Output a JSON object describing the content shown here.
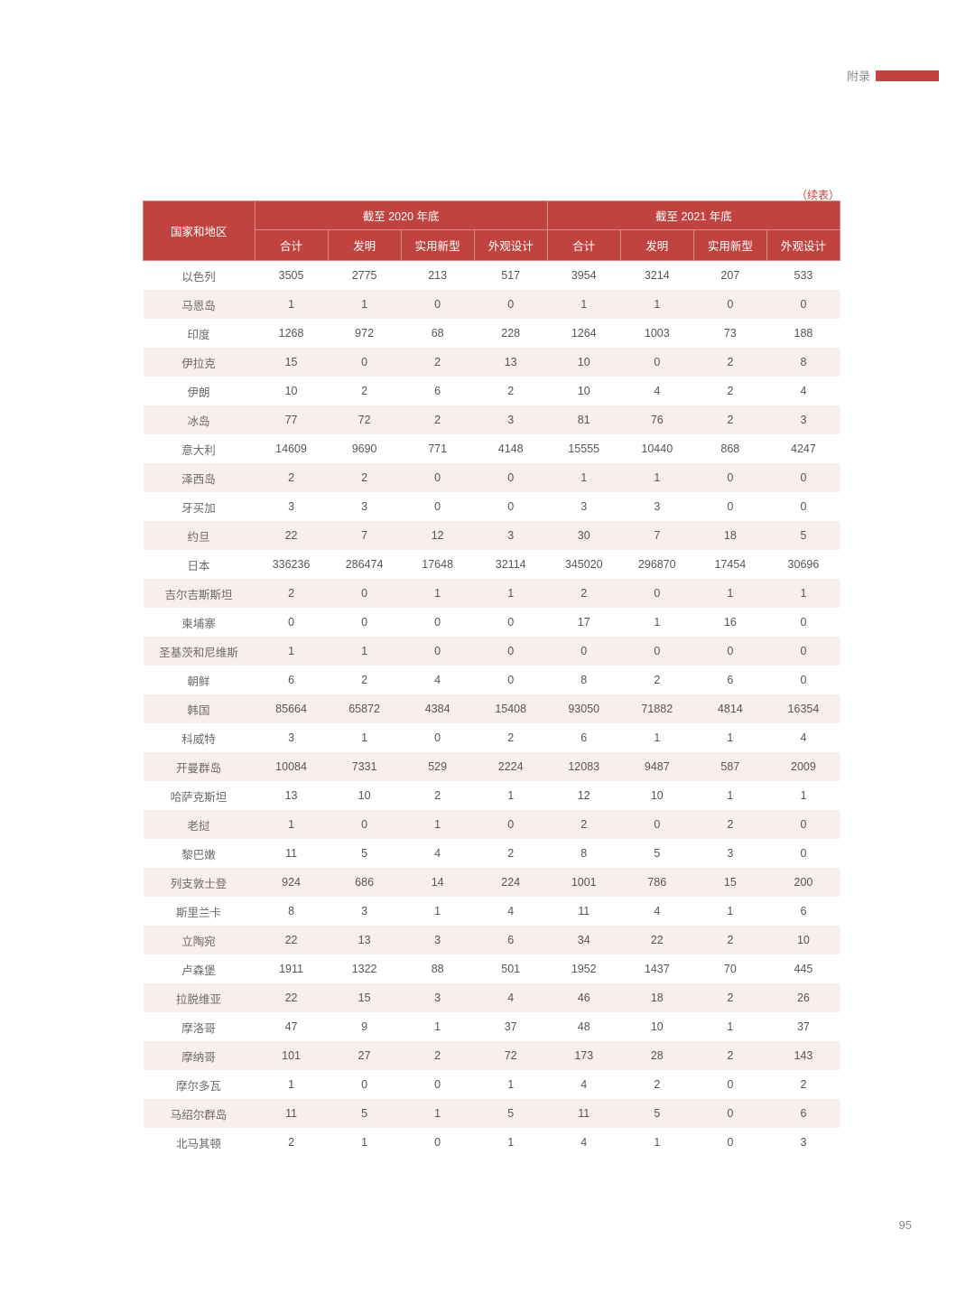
{
  "header": {
    "appendix_label": "附录",
    "continue_label": "（续表）",
    "page_number": "95"
  },
  "table": {
    "col_region": "国家和地区",
    "group_2020": "截至 2020 年底",
    "group_2021": "截至 2021 年底",
    "sub_total": "合计",
    "sub_invention": "发明",
    "sub_utility": "实用新型",
    "sub_design": "外观设计",
    "rows": [
      {
        "region": "以色列",
        "a": "3505",
        "b": "2775",
        "c": "213",
        "d": "517",
        "e": "3954",
        "f": "3214",
        "g": "207",
        "h": "533"
      },
      {
        "region": "马恩岛",
        "a": "1",
        "b": "1",
        "c": "0",
        "d": "0",
        "e": "1",
        "f": "1",
        "g": "0",
        "h": "0"
      },
      {
        "region": "印度",
        "a": "1268",
        "b": "972",
        "c": "68",
        "d": "228",
        "e": "1264",
        "f": "1003",
        "g": "73",
        "h": "188"
      },
      {
        "region": "伊拉克",
        "a": "15",
        "b": "0",
        "c": "2",
        "d": "13",
        "e": "10",
        "f": "0",
        "g": "2",
        "h": "8"
      },
      {
        "region": "伊朗",
        "a": "10",
        "b": "2",
        "c": "6",
        "d": "2",
        "e": "10",
        "f": "4",
        "g": "2",
        "h": "4"
      },
      {
        "region": "冰岛",
        "a": "77",
        "b": "72",
        "c": "2",
        "d": "3",
        "e": "81",
        "f": "76",
        "g": "2",
        "h": "3"
      },
      {
        "region": "意大利",
        "a": "14609",
        "b": "9690",
        "c": "771",
        "d": "4148",
        "e": "15555",
        "f": "10440",
        "g": "868",
        "h": "4247"
      },
      {
        "region": "泽西岛",
        "a": "2",
        "b": "2",
        "c": "0",
        "d": "0",
        "e": "1",
        "f": "1",
        "g": "0",
        "h": "0"
      },
      {
        "region": "牙买加",
        "a": "3",
        "b": "3",
        "c": "0",
        "d": "0",
        "e": "3",
        "f": "3",
        "g": "0",
        "h": "0"
      },
      {
        "region": "约旦",
        "a": "22",
        "b": "7",
        "c": "12",
        "d": "3",
        "e": "30",
        "f": "7",
        "g": "18",
        "h": "5"
      },
      {
        "region": "日本",
        "a": "336236",
        "b": "286474",
        "c": "17648",
        "d": "32114",
        "e": "345020",
        "f": "296870",
        "g": "17454",
        "h": "30696"
      },
      {
        "region": "吉尔吉斯斯坦",
        "a": "2",
        "b": "0",
        "c": "1",
        "d": "1",
        "e": "2",
        "f": "0",
        "g": "1",
        "h": "1"
      },
      {
        "region": "柬埔寨",
        "a": "0",
        "b": "0",
        "c": "0",
        "d": "0",
        "e": "17",
        "f": "1",
        "g": "16",
        "h": "0"
      },
      {
        "region": "圣基茨和尼维斯",
        "a": "1",
        "b": "1",
        "c": "0",
        "d": "0",
        "e": "0",
        "f": "0",
        "g": "0",
        "h": "0"
      },
      {
        "region": "朝鲜",
        "a": "6",
        "b": "2",
        "c": "4",
        "d": "0",
        "e": "8",
        "f": "2",
        "g": "6",
        "h": "0"
      },
      {
        "region": "韩国",
        "a": "85664",
        "b": "65872",
        "c": "4384",
        "d": "15408",
        "e": "93050",
        "f": "71882",
        "g": "4814",
        "h": "16354"
      },
      {
        "region": "科威特",
        "a": "3",
        "b": "1",
        "c": "0",
        "d": "2",
        "e": "6",
        "f": "1",
        "g": "1",
        "h": "4"
      },
      {
        "region": "开曼群岛",
        "a": "10084",
        "b": "7331",
        "c": "529",
        "d": "2224",
        "e": "12083",
        "f": "9487",
        "g": "587",
        "h": "2009"
      },
      {
        "region": "哈萨克斯坦",
        "a": "13",
        "b": "10",
        "c": "2",
        "d": "1",
        "e": "12",
        "f": "10",
        "g": "1",
        "h": "1"
      },
      {
        "region": "老挝",
        "a": "1",
        "b": "0",
        "c": "1",
        "d": "0",
        "e": "2",
        "f": "0",
        "g": "2",
        "h": "0"
      },
      {
        "region": "黎巴嫩",
        "a": "11",
        "b": "5",
        "c": "4",
        "d": "2",
        "e": "8",
        "f": "5",
        "g": "3",
        "h": "0"
      },
      {
        "region": "列支敦士登",
        "a": "924",
        "b": "686",
        "c": "14",
        "d": "224",
        "e": "1001",
        "f": "786",
        "g": "15",
        "h": "200"
      },
      {
        "region": "斯里兰卡",
        "a": "8",
        "b": "3",
        "c": "1",
        "d": "4",
        "e": "11",
        "f": "4",
        "g": "1",
        "h": "6"
      },
      {
        "region": "立陶宛",
        "a": "22",
        "b": "13",
        "c": "3",
        "d": "6",
        "e": "34",
        "f": "22",
        "g": "2",
        "h": "10"
      },
      {
        "region": "卢森堡",
        "a": "1911",
        "b": "1322",
        "c": "88",
        "d": "501",
        "e": "1952",
        "f": "1437",
        "g": "70",
        "h": "445"
      },
      {
        "region": "拉脱维亚",
        "a": "22",
        "b": "15",
        "c": "3",
        "d": "4",
        "e": "46",
        "f": "18",
        "g": "2",
        "h": "26"
      },
      {
        "region": "摩洛哥",
        "a": "47",
        "b": "9",
        "c": "1",
        "d": "37",
        "e": "48",
        "f": "10",
        "g": "1",
        "h": "37"
      },
      {
        "region": "摩纳哥",
        "a": "101",
        "b": "27",
        "c": "2",
        "d": "72",
        "e": "173",
        "f": "28",
        "g": "2",
        "h": "143"
      },
      {
        "region": "摩尔多瓦",
        "a": "1",
        "b": "0",
        "c": "0",
        "d": "1",
        "e": "4",
        "f": "2",
        "g": "0",
        "h": "2"
      },
      {
        "region": "马绍尔群岛",
        "a": "11",
        "b": "5",
        "c": "1",
        "d": "5",
        "e": "11",
        "f": "5",
        "g": "0",
        "h": "6"
      },
      {
        "region": "北马其顿",
        "a": "2",
        "b": "1",
        "c": "0",
        "d": "1",
        "e": "4",
        "f": "1",
        "g": "0",
        "h": "3"
      }
    ]
  },
  "colors": {
    "header_bg": "#c1433f",
    "header_text": "#ffffff",
    "row_even_bg": "#f9eeec",
    "row_odd_bg": "#ffffff",
    "border": "#d88c88"
  }
}
